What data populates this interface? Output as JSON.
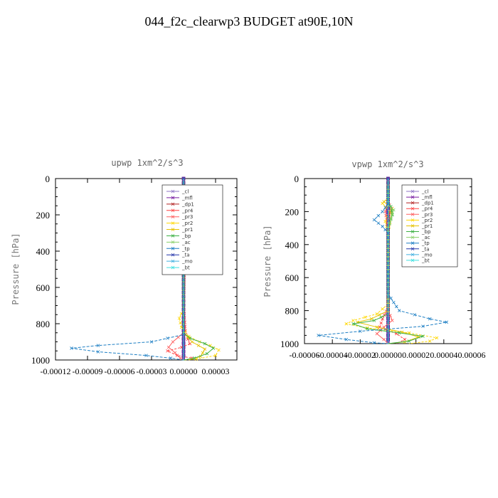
{
  "page": {
    "title": "044_f2c_clearwp3  BUDGET at90E,10N"
  },
  "chart_data": [
    {
      "type": "line",
      "title": "upwp  1xm^2/s^3",
      "ylabel": "Pressure [hPa]",
      "xlim": [
        -0.00012,
        5e-05
      ],
      "ylim": [
        1000,
        0
      ],
      "yticks": [
        0,
        200,
        400,
        600,
        800,
        1000
      ],
      "xticks": [
        -0.00012,
        -9e-05,
        -6e-05,
        -3e-05,
        0.0,
        3e-05
      ],
      "xtick_labels": [
        "-0.00012",
        "-0.00009",
        "-0.00006",
        "-0.00003",
        "0.00000",
        "0.00003"
      ],
      "legend_position": "top-right",
      "series": [
        {
          "name": "_cl",
          "color": "#8f74c6",
          "marker": "tri",
          "points": [
            [
              0,
              0
            ],
            [
              0,
              1000
            ]
          ]
        },
        {
          "name": "_mfl",
          "color": "#7a1fa2",
          "marker": "square",
          "points": [
            [
              0,
              0
            ],
            [
              0,
              1000
            ]
          ]
        },
        {
          "name": "_dp1",
          "color": "#b22222",
          "marker": "tri",
          "points": [
            [
              0,
              0
            ],
            [
              0,
              1000
            ]
          ]
        },
        {
          "name": "_pr4",
          "color": "#ff4040",
          "marker": "x",
          "points": [
            [
              0,
              0
            ],
            [
              0,
              120
            ],
            [
              0,
              150
            ],
            [
              3e-06,
              190
            ],
            [
              4e-06,
              230
            ],
            [
              2e-06,
              300
            ],
            [
              0,
              700
            ],
            [
              2e-06,
              860
            ],
            [
              6e-06,
              910
            ],
            [
              -2e-06,
              930
            ],
            [
              -1.5e-05,
              950
            ],
            [
              -6e-06,
              975
            ],
            [
              8e-06,
              990
            ],
            [
              1e-05,
              1000
            ]
          ]
        },
        {
          "name": "_pr3",
          "color": "#ff6060",
          "marker": "x",
          "points": [
            [
              0,
              0
            ],
            [
              0,
              150
            ],
            [
              -4e-06,
              200
            ],
            [
              0,
              300
            ],
            [
              0,
              850
            ],
            [
              -1e-05,
              900
            ],
            [
              -1.4e-05,
              930
            ],
            [
              -8e-06,
              960
            ],
            [
              -3e-06,
              990
            ],
            [
              0,
              1000
            ]
          ]
        },
        {
          "name": "_pr2",
          "color": "#ffd700",
          "marker": "x",
          "points": [
            [
              0,
              0
            ],
            [
              0,
              130
            ],
            [
              -3e-06,
              160
            ],
            [
              -8e-06,
              200
            ],
            [
              -2e-06,
              250
            ],
            [
              0,
              330
            ],
            [
              0,
              720
            ],
            [
              -4e-06,
              770
            ],
            [
              -2e-06,
              820
            ],
            [
              5e-06,
              870
            ],
            [
              1.5e-05,
              900
            ],
            [
              2.5e-05,
              920
            ],
            [
              3.3e-05,
              945
            ],
            [
              3e-05,
              975
            ],
            [
              1.2e-05,
              995
            ],
            [
              0,
              1000
            ]
          ]
        },
        {
          "name": "_pr1",
          "color": "#e6c200",
          "marker": "x",
          "points": [
            [
              0,
              0
            ],
            [
              0,
              150
            ],
            [
              -6e-06,
              190
            ],
            [
              -3e-06,
              240
            ],
            [
              0,
              300
            ],
            [
              0,
              850
            ],
            [
              8e-06,
              900
            ],
            [
              2e-05,
              940
            ],
            [
              1.6e-05,
              980
            ],
            [
              5e-06,
              1000
            ]
          ]
        },
        {
          "name": "_bp",
          "color": "#3cb043",
          "marker": "x",
          "points": [
            [
              0,
              0
            ],
            [
              0,
              170
            ],
            [
              2e-06,
              220
            ],
            [
              0,
              300
            ],
            [
              0,
              850
            ],
            [
              6e-06,
              880
            ],
            [
              2e-05,
              910
            ],
            [
              2.8e-05,
              935
            ],
            [
              2.2e-05,
              965
            ],
            [
              1e-05,
              990
            ],
            [
              0,
              1000
            ]
          ]
        },
        {
          "name": "_ac",
          "color": "#88d068",
          "marker": "x",
          "points": [
            [
              0,
              0
            ],
            [
              0,
              1000
            ]
          ]
        },
        {
          "name": "_tp",
          "color": "#1e7fc4",
          "marker": "x",
          "points": [
            [
              0,
              0
            ],
            [
              0,
              200
            ],
            [
              2e-06,
              230
            ],
            [
              0,
              280
            ],
            [
              0,
              860
            ],
            [
              -3e-05,
              900
            ],
            [
              -8e-05,
              920
            ],
            [
              -0.000105,
              935
            ],
            [
              -8e-05,
              955
            ],
            [
              -3.5e-05,
              975
            ],
            [
              -1.2e-05,
              990
            ],
            [
              0,
              1000
            ]
          ]
        },
        {
          "name": "_ta",
          "color": "#2233aa",
          "marker": "x",
          "points": [
            [
              0,
              0
            ],
            [
              0,
              1000
            ]
          ]
        },
        {
          "name": "_mo",
          "color": "#40b0e0",
          "marker": "none",
          "points": [
            [
              0,
              0
            ],
            [
              0,
              1000
            ]
          ]
        },
        {
          "name": "_bt",
          "color": "#40e0e0",
          "marker": "diamond",
          "points": [
            [
              0,
              0
            ],
            [
              0,
              1000
            ]
          ]
        }
      ]
    },
    {
      "type": "line",
      "title": "vpwp  1xm^2/s^3",
      "ylabel": "Pressure [hPa]",
      "xlim": [
        -6e-05,
        6e-05
      ],
      "ylim": [
        1000,
        0
      ],
      "yticks": [
        0,
        200,
        400,
        600,
        800,
        1000
      ],
      "xticks": [
        -6e-05,
        -4e-05,
        -2e-05,
        0.0,
        2e-05,
        4e-05,
        6e-05
      ],
      "xtick_labels": [
        "-0.00006",
        "-0.00004",
        "-0.00002",
        "0.00000",
        "0.00002",
        "0.00004",
        "0.00006"
      ],
      "legend_position": "top-right",
      "series": [
        {
          "name": "_cl",
          "color": "#8f74c6",
          "marker": "tri",
          "points": [
            [
              0,
              0
            ],
            [
              0,
              1000
            ]
          ]
        },
        {
          "name": "_mfl",
          "color": "#7a1fa2",
          "marker": "square",
          "points": [
            [
              0,
              0
            ],
            [
              0,
              1000
            ]
          ]
        },
        {
          "name": "_dp1",
          "color": "#b22222",
          "marker": "tri",
          "points": [
            [
              0,
              0
            ],
            [
              0,
              1000
            ]
          ]
        },
        {
          "name": "_pr4",
          "color": "#ff4040",
          "marker": "x",
          "points": [
            [
              0,
              0
            ],
            [
              0,
              140
            ],
            [
              2e-06,
              180
            ],
            [
              0,
              260
            ],
            [
              0,
              780
            ],
            [
              -4e-06,
              850
            ],
            [
              -6e-06,
              900
            ],
            [
              6e-06,
              940
            ],
            [
              1.2e-05,
              975
            ],
            [
              6e-06,
              1000
            ]
          ]
        },
        {
          "name": "_pr3",
          "color": "#ff6060",
          "marker": "x",
          "points": [
            [
              0,
              0
            ],
            [
              0,
              150
            ],
            [
              -2e-06,
              200
            ],
            [
              0,
              300
            ],
            [
              0,
              800
            ],
            [
              3e-06,
              860
            ],
            [
              -3e-06,
              900
            ],
            [
              -8e-06,
              940
            ],
            [
              -3e-06,
              975
            ],
            [
              0,
              1000
            ]
          ]
        },
        {
          "name": "_pr2",
          "color": "#ffd700",
          "marker": "x",
          "points": [
            [
              0,
              0
            ],
            [
              0,
              120
            ],
            [
              -4e-06,
              150
            ],
            [
              1e-06,
              200
            ],
            [
              -2e-06,
              260
            ],
            [
              0,
              320
            ],
            [
              0,
              760
            ],
            [
              -8e-06,
              820
            ],
            [
              -2.5e-05,
              860
            ],
            [
              -3e-05,
              880
            ],
            [
              -1.5e-05,
              905
            ],
            [
              1.5e-05,
              935
            ],
            [
              3.5e-05,
              965
            ],
            [
              3e-05,
              985
            ],
            [
              1.5e-05,
              1000
            ]
          ]
        },
        {
          "name": "_pr1",
          "color": "#e6c200",
          "marker": "x",
          "points": [
            [
              0,
              0
            ],
            [
              0,
              120
            ],
            [
              -3e-06,
              140
            ],
            [
              3e-06,
              180
            ],
            [
              2e-06,
              240
            ],
            [
              0,
              320
            ],
            [
              0,
              800
            ],
            [
              -1.2e-05,
              850
            ],
            [
              -2.2e-05,
              870
            ],
            [
              -8e-06,
              900
            ],
            [
              1e-05,
              930
            ],
            [
              2.2e-05,
              960
            ],
            [
              1.2e-05,
              990
            ],
            [
              0,
              1000
            ]
          ]
        },
        {
          "name": "_bp",
          "color": "#3cb043",
          "marker": "x",
          "points": [
            [
              0,
              0
            ],
            [
              0,
              140
            ],
            [
              2e-06,
              170
            ],
            [
              3e-06,
              220
            ],
            [
              0,
              300
            ],
            [
              0,
              820
            ],
            [
              -1e-05,
              860
            ],
            [
              -2.5e-05,
              880
            ],
            [
              -1.5e-05,
              910
            ],
            [
              8e-06,
              935
            ],
            [
              2.5e-05,
              955
            ],
            [
              1.5e-05,
              985
            ],
            [
              0,
              1000
            ]
          ]
        },
        {
          "name": "_ac",
          "color": "#88d068",
          "marker": "x",
          "points": [
            [
              0,
              0
            ],
            [
              0,
              160
            ],
            [
              4e-06,
              190
            ],
            [
              2e-06,
              240
            ],
            [
              0,
              300
            ],
            [
              0,
              1000
            ]
          ]
        },
        {
          "name": "_tp",
          "color": "#1e7fc4",
          "marker": "x",
          "points": [
            [
              0,
              0
            ],
            [
              0,
              150
            ],
            [
              -4e-06,
              200
            ],
            [
              -1e-05,
              250
            ],
            [
              -4e-06,
              290
            ],
            [
              0,
              330
            ],
            [
              0,
              700
            ],
            [
              8e-06,
              800
            ],
            [
              3e-05,
              850
            ],
            [
              4.2e-05,
              870
            ],
            [
              2.5e-05,
              895
            ],
            [
              -2e-05,
              925
            ],
            [
              -5e-05,
              950
            ],
            [
              -3e-05,
              975
            ],
            [
              -1e-05,
              995
            ],
            [
              0,
              1000
            ]
          ]
        },
        {
          "name": "_ta",
          "color": "#2233aa",
          "marker": "x",
          "points": [
            [
              0,
              0
            ],
            [
              0,
              1000
            ]
          ]
        },
        {
          "name": "_mo",
          "color": "#40b0e0",
          "marker": "none",
          "points": [
            [
              0,
              0
            ],
            [
              0,
              1000
            ]
          ]
        },
        {
          "name": "_bt",
          "color": "#40e0e0",
          "marker": "diamond",
          "points": [
            [
              0,
              0
            ],
            [
              0,
              1000
            ]
          ]
        }
      ]
    }
  ]
}
